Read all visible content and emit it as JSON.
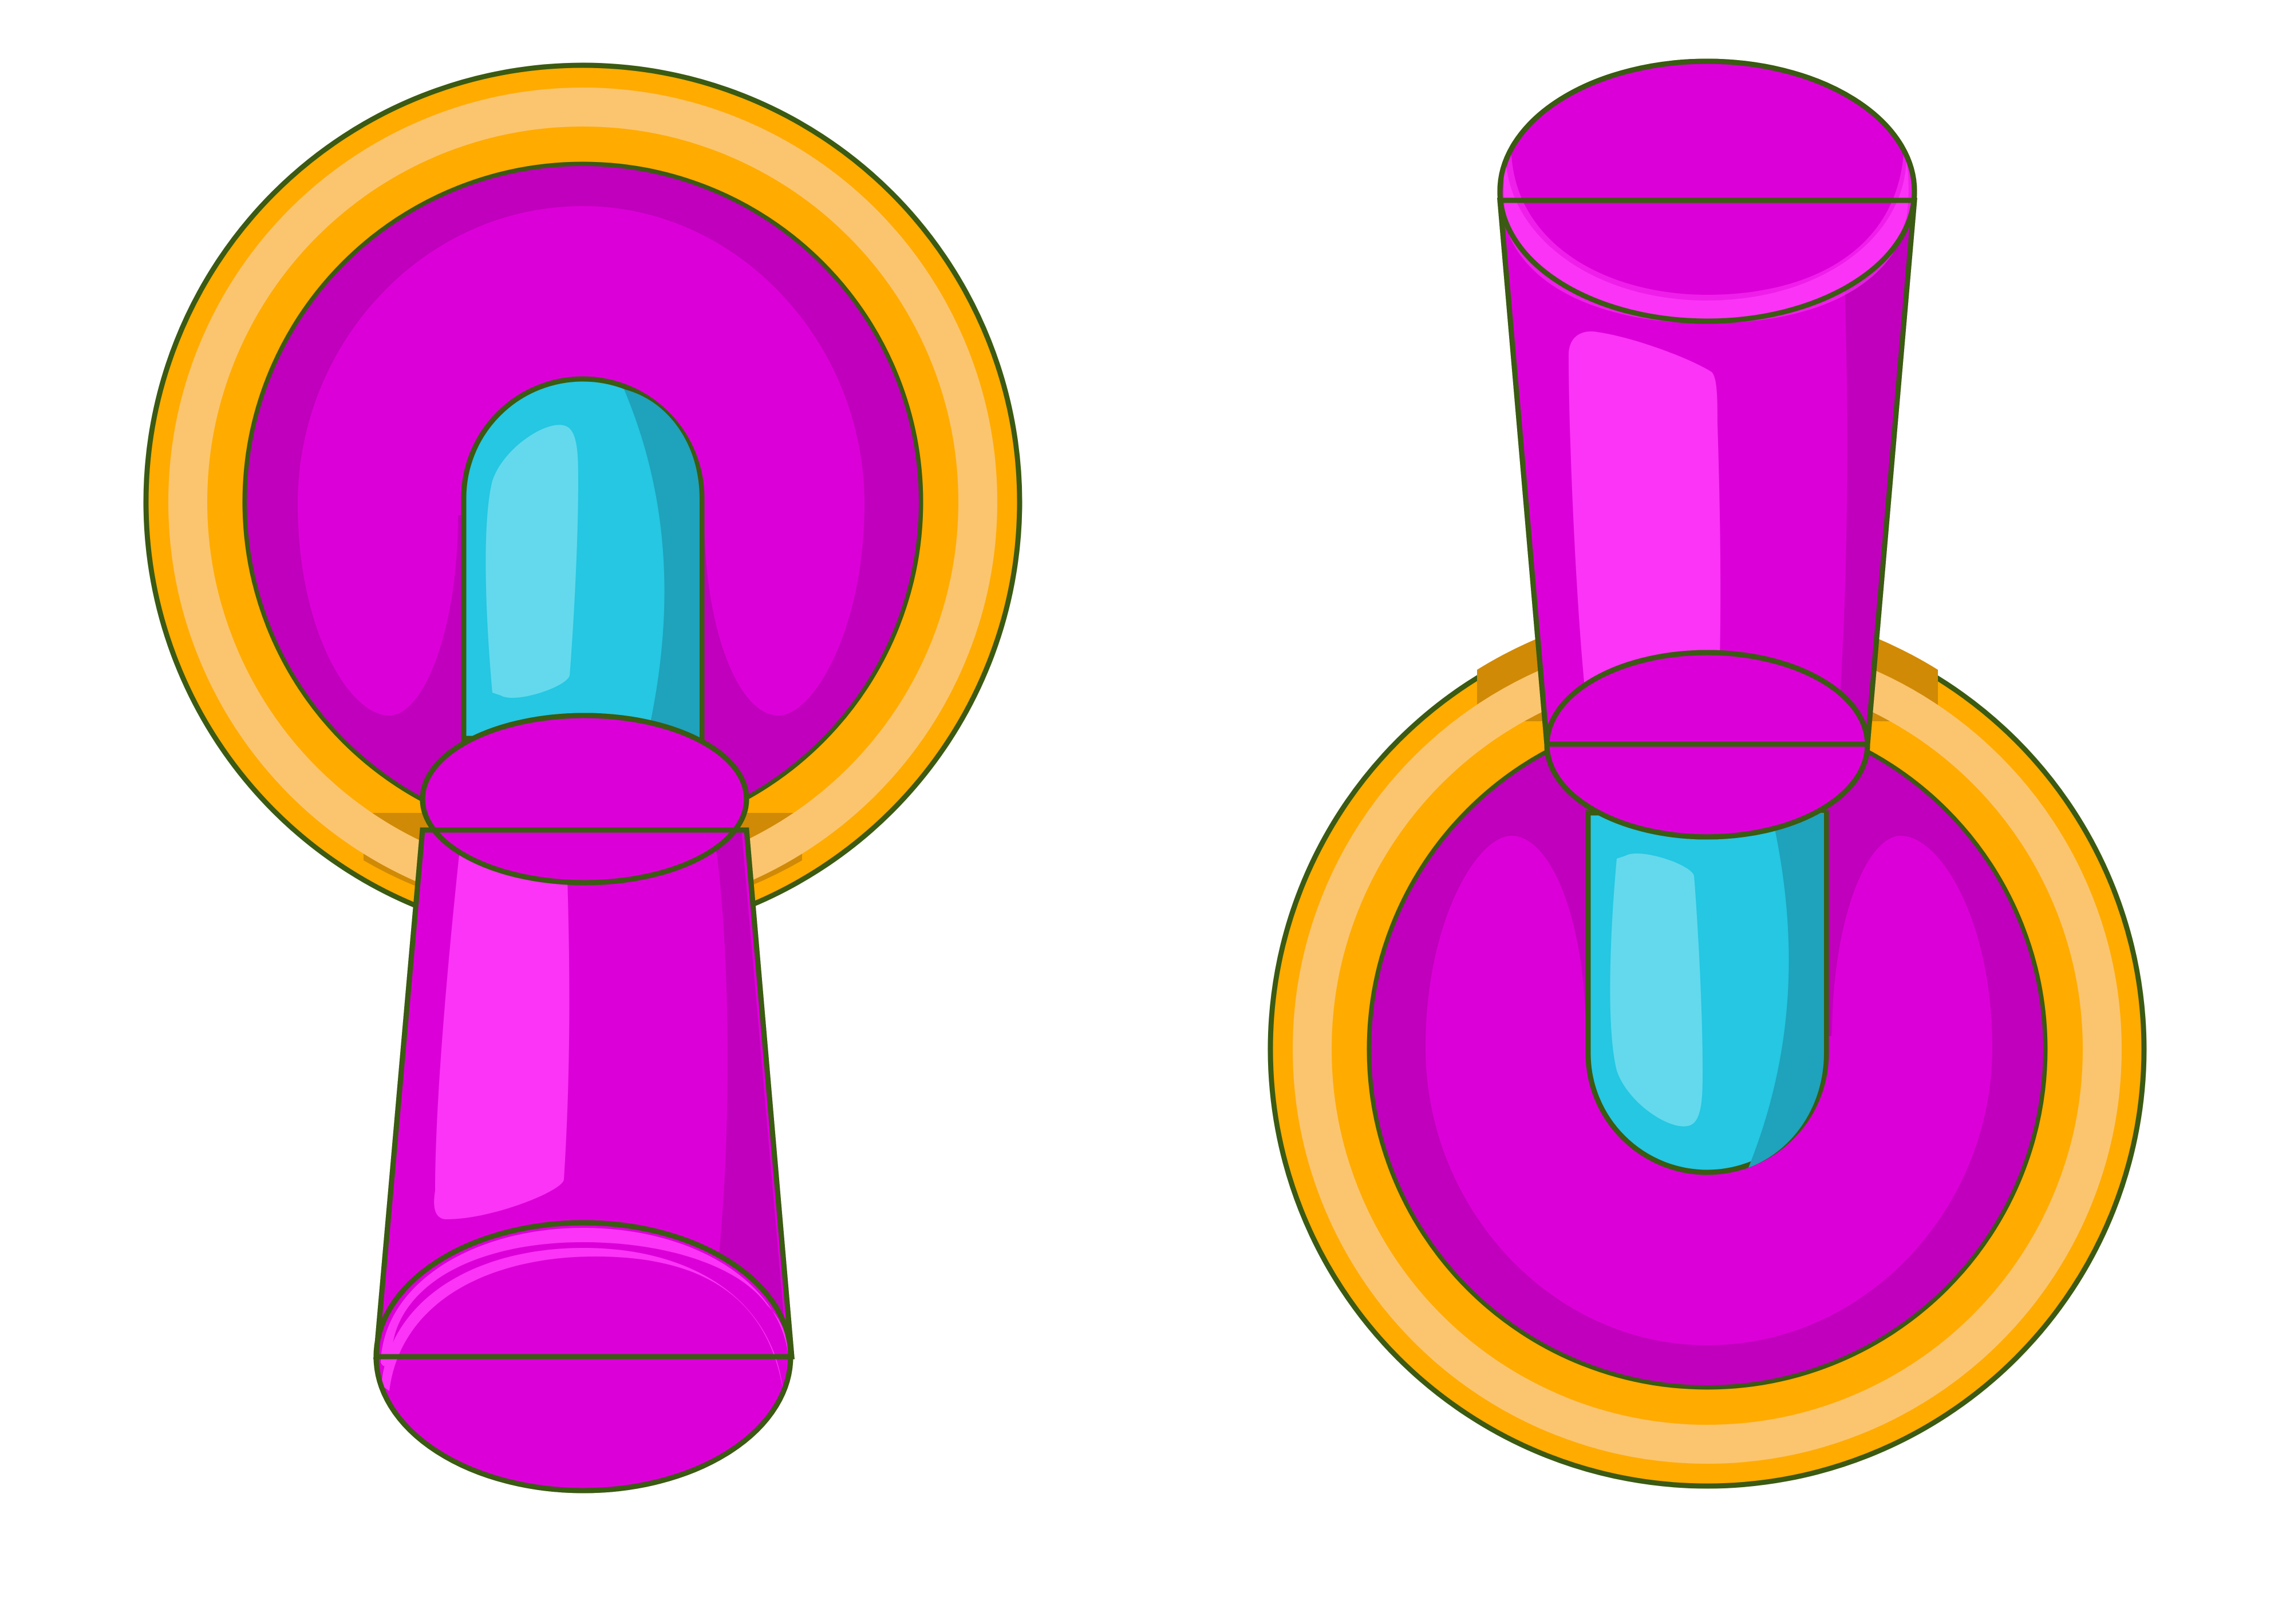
{
  "scene": {
    "background": "#ffffff",
    "subject": "toggle-switches",
    "switches": [
      {
        "id": "left",
        "state": "down"
      },
      {
        "id": "right",
        "state": "up"
      }
    ]
  },
  "palette": {
    "outline": "#3b5a12",
    "plate_orange": "#ffab00",
    "plate_light": "#fbc56f",
    "plate_shadow": "#d08a05",
    "knob_magenta": "#dc00d8",
    "knob_dark": "#c000bc",
    "knob_highlight": "#fb34f7",
    "stem_cyan": "#25c7e2",
    "stem_dark": "#1fa2bb",
    "stem_highlight": "#64d9ed"
  }
}
